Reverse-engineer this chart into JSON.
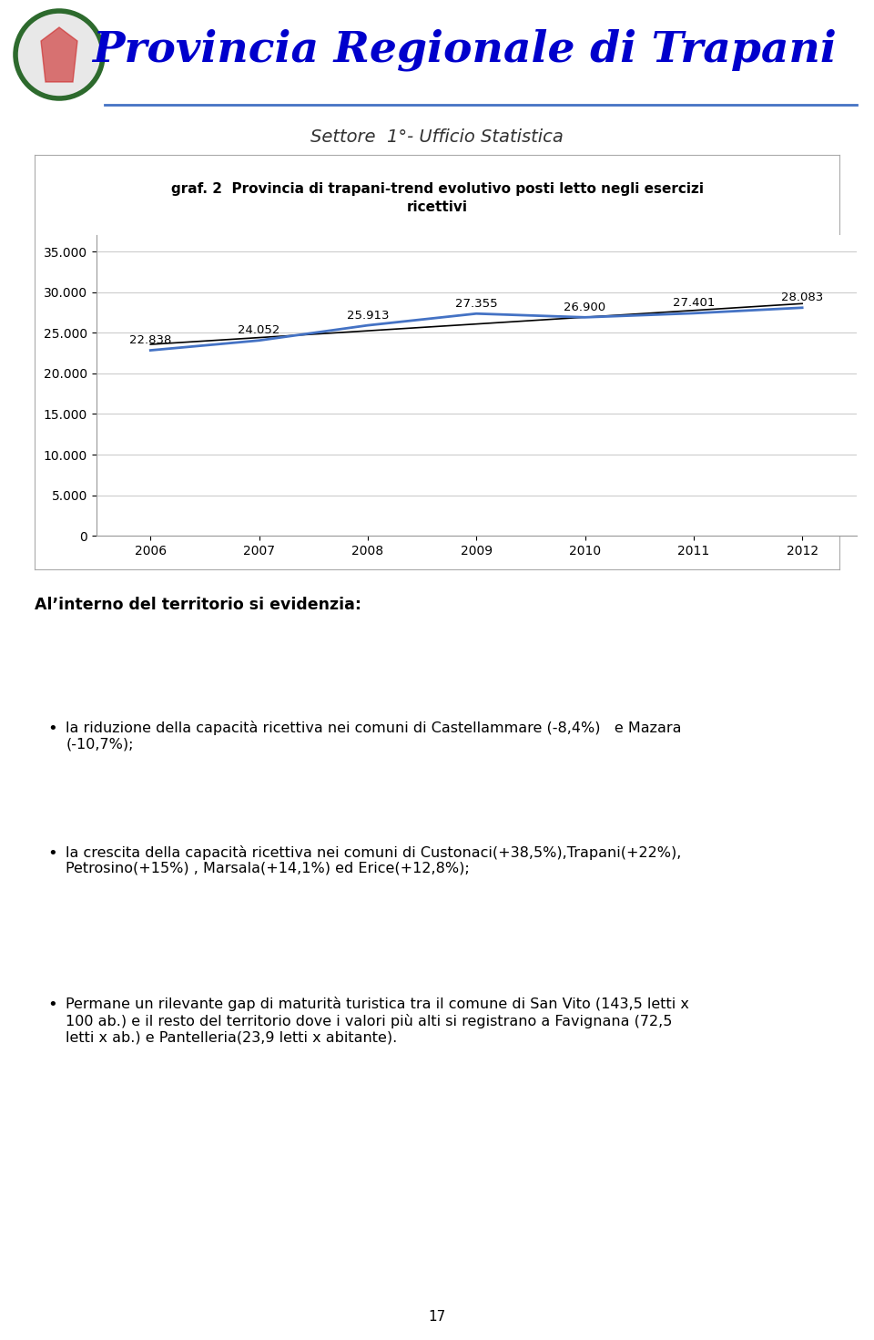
{
  "title_main": "Provincia Regionale di Trapani",
  "subtitle": "Settore  1°- Ufficio Statistica",
  "chart_title": "graf. 2  Provincia di trapani-trend evolutivo posti letto negli esercizi\nricettivi",
  "years": [
    2006,
    2007,
    2008,
    2009,
    2010,
    2011,
    2012
  ],
  "values": [
    22838,
    24052,
    25913,
    27355,
    26900,
    27401,
    28083
  ],
  "labels": [
    "22.838",
    "24.052",
    "25.913",
    "27.355",
    "26.900",
    "27.401",
    "28.083"
  ],
  "line_color": "#4472C4",
  "trend_color": "#000000",
  "ylim": [
    0,
    37000
  ],
  "yticks": [
    0,
    5000,
    10000,
    15000,
    20000,
    25000,
    30000,
    35000
  ],
  "ytick_labels": [
    "0",
    "5.000",
    "10.000",
    "15.000",
    "20.000",
    "25.000",
    "30.000",
    "35.000"
  ],
  "chart_bg": "#ffffff",
  "grid_color": "#cccccc",
  "text_section_header": "Al’interno del territorio si evidenzia:",
  "bullet1": "la riduzione della capacità ricettiva nei comuni di Castellammare (-8,4%)   e Mazara\n(-10,7%);",
  "bullet2": "la crescita della capacità ricettiva nei comuni di Custonaci(+38,5%),Trapani(+22%),\nPetrosino(+15%) , Marsala(+14,1%) ed Erice(+12,8%);",
  "bullet3": "Permane un rilevante gap di maturità turistica tra il comune di San Vito (143,5 letti x\n100 ab.) e il resto del territorio dove i valori più alti si registrano a Favignana (72,5\nletti x ab.) e Pantelleria(23,9 letti x abitante).",
  "page_number": "17",
  "header_line_color": "#4472C4",
  "box_edge_color": "#aaaaaa"
}
